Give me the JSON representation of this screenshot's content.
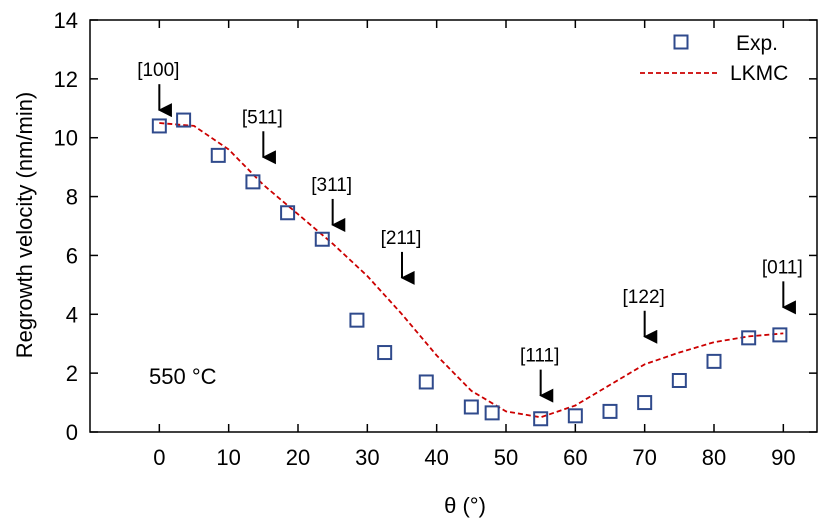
{
  "chart_data": {
    "type": "scatter",
    "title": "",
    "xlabel": "θ (°)",
    "ylabel": "Regrowth velocity (nm/min)",
    "xlim": [
      -10,
      95
    ],
    "ylim": [
      0,
      14
    ],
    "x_ticks": [
      0,
      10,
      20,
      30,
      40,
      50,
      60,
      70,
      80,
      90
    ],
    "y_ticks": [
      0,
      2,
      4,
      6,
      8,
      10,
      12,
      14
    ],
    "grid": false,
    "legend_position": "top-right",
    "series": [
      {
        "name": "Exp.",
        "kind": "scatter",
        "marker": "open-square",
        "color": "#2f4a8c",
        "points": [
          {
            "x": 0,
            "y": 10.4
          },
          {
            "x": 3.5,
            "y": 10.6
          },
          {
            "x": 8.5,
            "y": 9.4
          },
          {
            "x": 13.5,
            "y": 8.5
          },
          {
            "x": 18.5,
            "y": 7.45
          },
          {
            "x": 23.5,
            "y": 6.55
          },
          {
            "x": 28.5,
            "y": 3.8
          },
          {
            "x": 32.5,
            "y": 2.7
          },
          {
            "x": 38.5,
            "y": 1.7
          },
          {
            "x": 45,
            "y": 0.85
          },
          {
            "x": 48,
            "y": 0.65
          },
          {
            "x": 55,
            "y": 0.45
          },
          {
            "x": 60,
            "y": 0.55
          },
          {
            "x": 65,
            "y": 0.7
          },
          {
            "x": 70,
            "y": 1.0
          },
          {
            "x": 75,
            "y": 1.75
          },
          {
            "x": 80,
            "y": 2.4
          },
          {
            "x": 85,
            "y": 3.2
          },
          {
            "x": 89.5,
            "y": 3.3
          }
        ]
      },
      {
        "name": "LKMC",
        "kind": "line",
        "line_style": "dashed",
        "color": "#cc0000",
        "points": [
          {
            "x": 0,
            "y": 10.5
          },
          {
            "x": 5,
            "y": 10.4
          },
          {
            "x": 10,
            "y": 9.6
          },
          {
            "x": 15,
            "y": 8.4
          },
          {
            "x": 20,
            "y": 7.4
          },
          {
            "x": 25,
            "y": 6.4
          },
          {
            "x": 30,
            "y": 5.3
          },
          {
            "x": 35,
            "y": 4.0
          },
          {
            "x": 40,
            "y": 2.6
          },
          {
            "x": 45,
            "y": 1.4
          },
          {
            "x": 50,
            "y": 0.7
          },
          {
            "x": 55,
            "y": 0.5
          },
          {
            "x": 60,
            "y": 0.9
          },
          {
            "x": 65,
            "y": 1.6
          },
          {
            "x": 70,
            "y": 2.3
          },
          {
            "x": 75,
            "y": 2.7
          },
          {
            "x": 80,
            "y": 3.05
          },
          {
            "x": 85,
            "y": 3.25
          },
          {
            "x": 90,
            "y": 3.35
          }
        ]
      }
    ],
    "annotations": [
      {
        "label": "[100]",
        "x": 0,
        "y": 10.8,
        "arrow": true
      },
      {
        "label": "[511]",
        "x": 15,
        "y": 9.2,
        "arrow": true
      },
      {
        "label": "[311]",
        "x": 25,
        "y": 6.9,
        "arrow": true
      },
      {
        "label": "[211]",
        "x": 35,
        "y": 5.1,
        "arrow": true
      },
      {
        "label": "[111]",
        "x": 55,
        "y": 1.1,
        "arrow": true
      },
      {
        "label": "[122]",
        "x": 70,
        "y": 3.1,
        "arrow": true
      },
      {
        "label": "[011]",
        "x": 90,
        "y": 4.1,
        "arrow": true
      }
    ],
    "note": "550 °C"
  }
}
